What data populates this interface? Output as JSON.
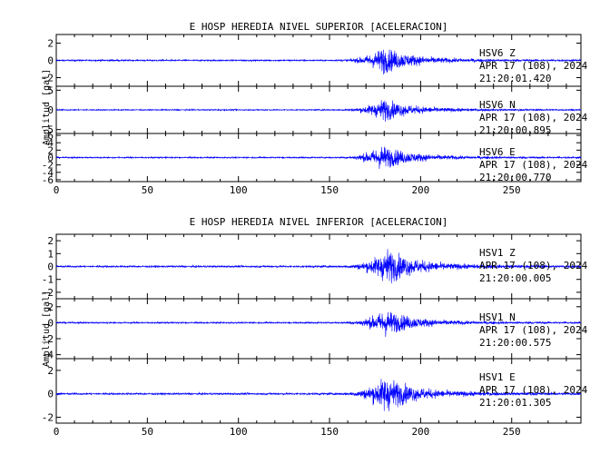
{
  "chart_data": [
    {
      "type": "line",
      "title": "E HOSP HEREDIA NIVEL SUPERIOR [ACELERACION]",
      "xlabel": "",
      "ylabel": "Amplitud [gal]",
      "xlim": [
        0,
        288
      ],
      "xticks": [
        0,
        50,
        100,
        150,
        200,
        250
      ],
      "xtick_labels": [
        "0",
        "50",
        "100",
        "150",
        "200",
        "250"
      ],
      "series_color": "#0000ff",
      "panels": [
        {
          "station": "HSV6",
          "component": "Z",
          "date": "APR 17 (108), 2024",
          "time": "21:20:01.420",
          "ylim": [
            -3,
            3
          ],
          "yticks": [
            -2,
            0,
            2
          ],
          "ytick_labels": [
            "-2",
            "0",
            "2"
          ],
          "peak_amplitude": 2.8,
          "onset_s": 150,
          "peak_s": 179,
          "end_s": 288
        },
        {
          "station": "HSV6",
          "component": "N",
          "date": "APR 17 (108), 2024",
          "time": "21:20:00.895",
          "ylim": [
            -6,
            6
          ],
          "yticks": [
            -5,
            0,
            5
          ],
          "ytick_labels": [
            "-5",
            "0",
            "5"
          ],
          "peak_amplitude": 5.0,
          "onset_s": 150,
          "peak_s": 179,
          "end_s": 288
        },
        {
          "station": "HSV6",
          "component": "E",
          "date": "APR 17 (108), 2024",
          "time": "21:20:00.770",
          "ylim": [
            -6.5,
            6.5
          ],
          "yticks": [
            -6,
            -4,
            -2,
            0,
            2,
            4,
            6
          ],
          "ytick_labels": [
            "-6",
            "-4",
            "-2",
            "0",
            "2",
            "4",
            "6"
          ],
          "peak_amplitude": 6.0,
          "onset_s": 150,
          "peak_s": 178,
          "end_s": 288
        }
      ]
    },
    {
      "type": "line",
      "title": "E HOSP HEREDIA NIVEL INFERIOR [ACELERACION]",
      "xlabel": "",
      "ylabel": "Amplitud [gal]",
      "xlim": [
        0,
        288
      ],
      "xticks": [
        0,
        50,
        100,
        150,
        200,
        250
      ],
      "xtick_labels": [
        "0",
        "50",
        "100",
        "150",
        "200",
        "250"
      ],
      "series_color": "#0000ff",
      "panels": [
        {
          "station": "HSV1",
          "component": "Z",
          "date": "APR 17 (108), 2024",
          "time": "21:20:00.005",
          "ylim": [
            -2.5,
            2.5
          ],
          "yticks": [
            -2,
            -1,
            0,
            1,
            2
          ],
          "ytick_labels": [
            "-2",
            "-1",
            "0",
            "1",
            "2"
          ],
          "peak_amplitude": 2.4,
          "onset_s": 150,
          "peak_s": 181,
          "end_s": 288
        },
        {
          "station": "HSV1",
          "component": "N",
          "date": "APR 17 (108), 2024",
          "time": "21:20:00.575",
          "ylim": [
            -4.5,
            3
          ],
          "yticks": [
            -4,
            -2,
            0,
            2
          ],
          "ytick_labels": [
            "-4",
            "-2",
            "0",
            "2"
          ],
          "peak_amplitude": 3.0,
          "onset_s": 150,
          "peak_s": 180,
          "end_s": 288
        },
        {
          "station": "HSV1",
          "component": "E",
          "date": "APR 17 (108), 2024",
          "time": "21:20:01.305",
          "ylim": [
            -2.5,
            3
          ],
          "yticks": [
            -2,
            0,
            2
          ],
          "ytick_labels": [
            "-2",
            "0",
            "2"
          ],
          "peak_amplitude": 2.7,
          "onset_s": 150,
          "peak_s": 180,
          "end_s": 288
        }
      ]
    }
  ]
}
